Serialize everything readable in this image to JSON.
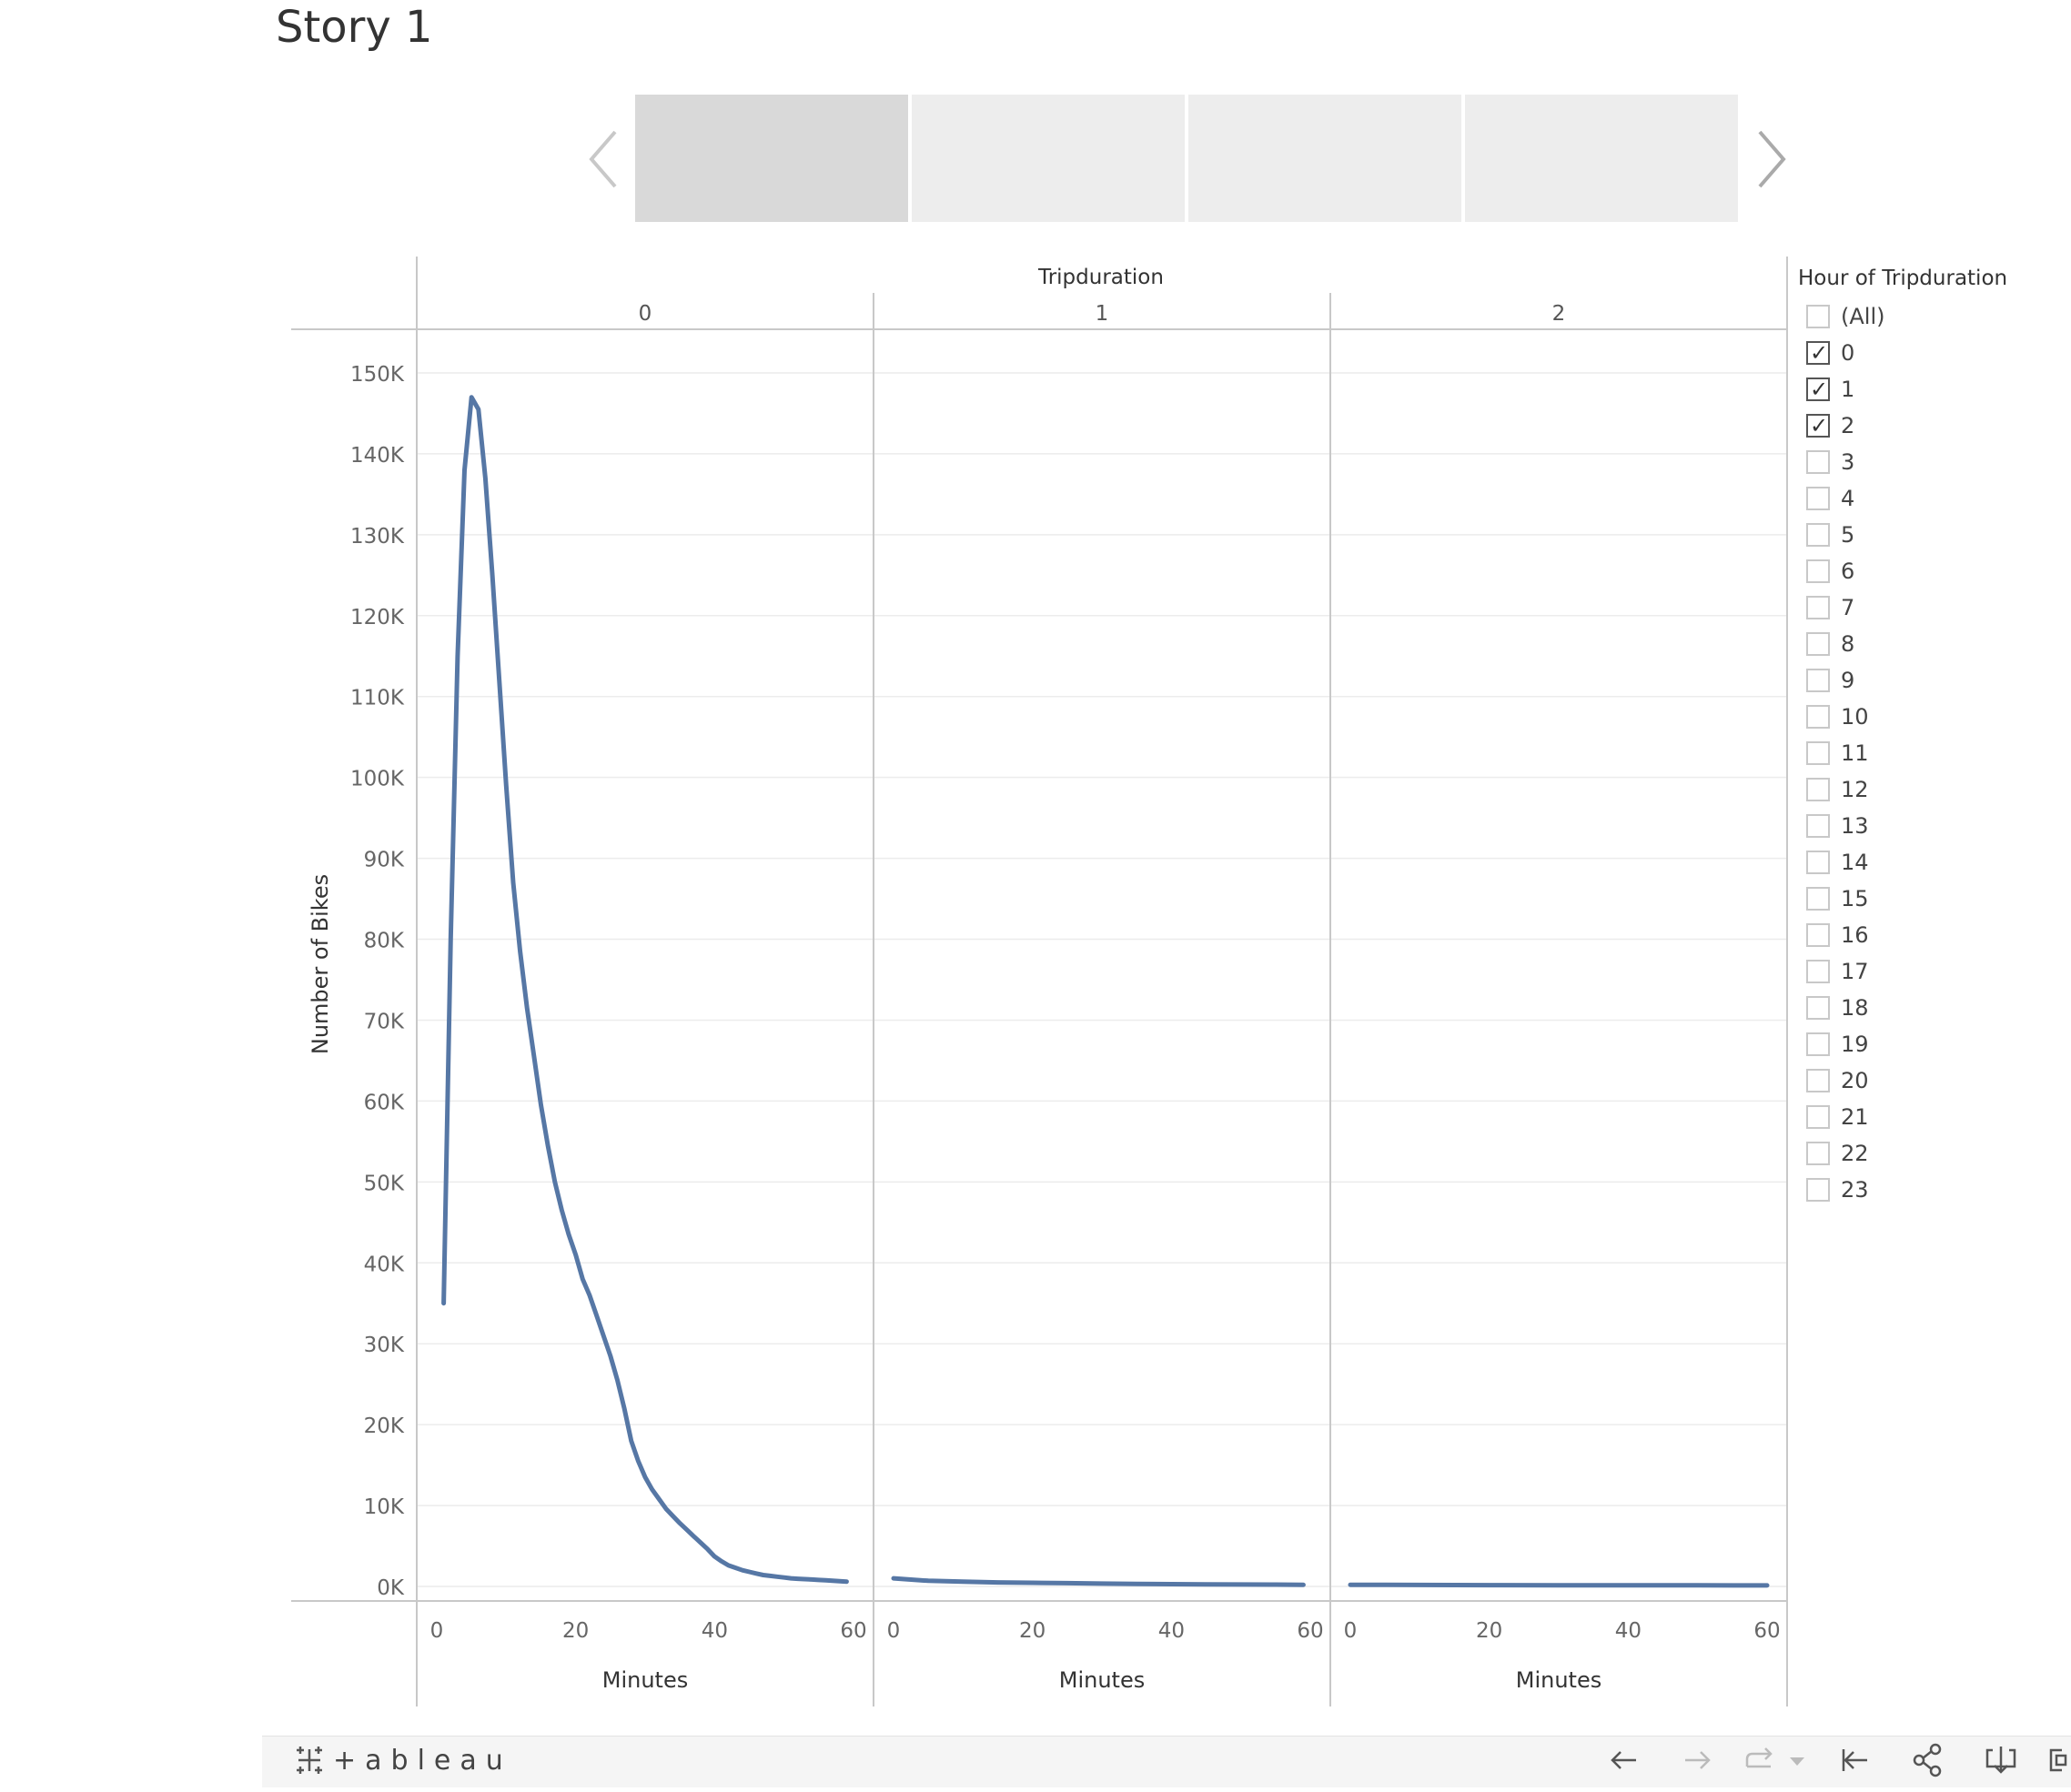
{
  "story": {
    "title": "Story 1"
  },
  "navigator": {
    "points": [
      {
        "label": "",
        "active": true
      },
      {
        "label": "",
        "active": false
      },
      {
        "label": "",
        "active": false
      },
      {
        "label": "",
        "active": false
      }
    ]
  },
  "filter": {
    "title": "Hour of Tripduration",
    "items": [
      {
        "label": "(All)",
        "checked": false
      },
      {
        "label": "0",
        "checked": true
      },
      {
        "label": "1",
        "checked": true
      },
      {
        "label": "2",
        "checked": true
      },
      {
        "label": "3",
        "checked": false
      },
      {
        "label": "4",
        "checked": false
      },
      {
        "label": "5",
        "checked": false
      },
      {
        "label": "6",
        "checked": false
      },
      {
        "label": "7",
        "checked": false
      },
      {
        "label": "8",
        "checked": false
      },
      {
        "label": "9",
        "checked": false
      },
      {
        "label": "10",
        "checked": false
      },
      {
        "label": "11",
        "checked": false
      },
      {
        "label": "12",
        "checked": false
      },
      {
        "label": "13",
        "checked": false
      },
      {
        "label": "14",
        "checked": false
      },
      {
        "label": "15",
        "checked": false
      },
      {
        "label": "16",
        "checked": false
      },
      {
        "label": "17",
        "checked": false
      },
      {
        "label": "18",
        "checked": false
      },
      {
        "label": "19",
        "checked": false
      },
      {
        "label": "20",
        "checked": false
      },
      {
        "label": "21",
        "checked": false
      },
      {
        "label": "22",
        "checked": false
      },
      {
        "label": "23",
        "checked": false
      }
    ]
  },
  "toolbar": {
    "logo": "+ableau",
    "icons": [
      "undo-icon",
      "redo-icon",
      "revert-icon",
      "revert-dropdown-icon",
      "first-point-icon",
      "share-icon",
      "download-icon",
      "fullscreen-icon"
    ]
  },
  "colors": {
    "line": "#5677a5",
    "grid": "#ececec",
    "axis": "#c8c8c8",
    "checkbox_border": "#c8c8c8"
  },
  "chart_data": {
    "type": "line",
    "title": "",
    "column_header": "Tripduration",
    "ylabel": "Number of Bikes",
    "xlabel": "Minutes",
    "ylim": [
      0,
      155000
    ],
    "yticks": [
      0,
      10000,
      20000,
      30000,
      40000,
      50000,
      60000,
      70000,
      80000,
      90000,
      100000,
      110000,
      120000,
      130000,
      140000,
      150000
    ],
    "ytick_labels": [
      "0K",
      "10K",
      "20K",
      "30K",
      "40K",
      "50K",
      "60K",
      "70K",
      "80K",
      "90K",
      "100K",
      "110K",
      "120K",
      "130K",
      "140K",
      "150K"
    ],
    "xlim": [
      -3,
      60
    ],
    "xticks": [
      0,
      20,
      40,
      60
    ],
    "xtick_labels": [
      "0",
      "20",
      "40",
      "60"
    ],
    "grid": true,
    "legend": "none",
    "panels": [
      {
        "header": "0",
        "x": [
          1,
          2,
          3,
          4,
          5,
          6,
          7,
          8,
          9,
          10,
          11,
          12,
          13,
          14,
          15,
          16,
          17,
          18,
          19,
          20,
          21,
          22,
          23,
          24,
          25,
          26,
          27,
          28,
          29,
          30,
          31,
          32,
          33,
          34,
          35,
          36,
          37,
          38,
          39,
          40,
          41,
          42,
          43,
          44,
          45,
          46,
          47,
          48,
          49,
          50,
          51,
          52,
          53,
          54,
          55,
          56,
          57,
          58,
          59
        ],
        "y": [
          35000,
          80000,
          115000,
          138000,
          147000,
          145500,
          137000,
          125000,
          112000,
          99000,
          87000,
          78500,
          71500,
          65500,
          59500,
          54500,
          50000,
          46500,
          43500,
          41000,
          38000,
          36000,
          33500,
          31000,
          28500,
          25500,
          22000,
          18000,
          15500,
          13500,
          12000,
          10800,
          9600,
          8700,
          7800,
          7000,
          6200,
          5400,
          4600,
          3700,
          3100,
          2600,
          2300,
          2000,
          1800,
          1600,
          1400,
          1300,
          1200,
          1100,
          1000,
          950,
          900,
          850,
          800,
          750,
          700,
          650,
          600
        ]
      },
      {
        "header": "1",
        "x": [
          0,
          5,
          10,
          15,
          20,
          25,
          30,
          35,
          40,
          45,
          50,
          55,
          59
        ],
        "y": [
          1000,
          700,
          600,
          500,
          450,
          400,
          350,
          300,
          280,
          260,
          240,
          220,
          200
        ]
      },
      {
        "header": "2",
        "x": [
          0,
          10,
          20,
          30,
          40,
          50,
          60
        ],
        "y": [
          200,
          180,
          160,
          150,
          140,
          130,
          120
        ]
      }
    ]
  }
}
